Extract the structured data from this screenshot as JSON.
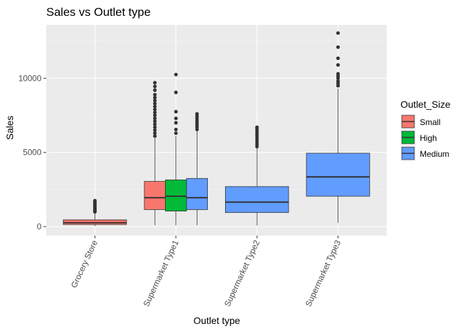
{
  "chart_data": {
    "type": "boxplot",
    "title": "Sales vs Outlet type",
    "xlabel": "Outlet type",
    "ylabel": "Sales",
    "ylim": [
      -600,
      13600
    ],
    "yticks": [
      0,
      5000,
      10000
    ],
    "ytick_labels": [
      "0",
      "5000",
      "10000"
    ],
    "categories": [
      "Grocery Store",
      "Supermarket Type1",
      "Supermarket Type2",
      "Supermarket Type3"
    ],
    "legend": {
      "title": "Outlet_Size",
      "position": "right",
      "entries": [
        {
          "name": "Small",
          "color": "#f8766d"
        },
        {
          "name": "High",
          "color": "#00ba38"
        },
        {
          "name": "Medium",
          "color": "#619cff"
        }
      ]
    },
    "grid": true,
    "boxes": [
      {
        "category": "Grocery Store",
        "group": "Small",
        "color": "#f8766d",
        "min": 35,
        "q1": 140,
        "median": 260,
        "q3": 460,
        "max": 950,
        "outliers": [
          1000,
          1050,
          1100,
          1150,
          1200,
          1250,
          1300,
          1350,
          1450,
          1550,
          1650,
          1750
        ]
      },
      {
        "category": "Supermarket Type1",
        "group": "Small",
        "color": "#f8766d",
        "min": 100,
        "q1": 1150,
        "median": 1950,
        "q3": 3050,
        "max": 5950,
        "outliers": [
          6100,
          6300,
          6500,
          6700,
          6900,
          7100,
          7300,
          7500,
          7700,
          7900,
          8100,
          8300,
          8500,
          8700,
          8900,
          9200,
          9450,
          9700
        ]
      },
      {
        "category": "Supermarket Type1",
        "group": "High",
        "color": "#00ba38",
        "min": 80,
        "q1": 1050,
        "median": 2050,
        "q3": 3150,
        "max": 6100,
        "outliers": [
          6300,
          6550,
          7000,
          7300,
          7750,
          9050,
          10250
        ]
      },
      {
        "category": "Supermarket Type1",
        "group": "Medium",
        "color": "#619cff",
        "min": 100,
        "q1": 1150,
        "median": 1950,
        "q3": 3250,
        "max": 6450,
        "outliers": [
          6550,
          6700,
          6850,
          7000,
          7150,
          7300,
          7450,
          7600
        ]
      },
      {
        "category": "Supermarket Type2",
        "group": "Medium",
        "color": "#619cff",
        "min": 70,
        "q1": 950,
        "median": 1650,
        "q3": 2700,
        "max": 5300,
        "outliers": [
          5400,
          5550,
          5700,
          5850,
          6000,
          6150,
          6300,
          6450,
          6600,
          6700
        ]
      },
      {
        "category": "Supermarket Type3",
        "group": "Medium",
        "color": "#619cff",
        "min": 250,
        "q1": 2050,
        "median": 3350,
        "q3": 4950,
        "max": 9300,
        "outliers": [
          9500,
          9650,
          9800,
          10000,
          10150,
          10300,
          10900,
          11350,
          12100,
          13050
        ]
      }
    ]
  }
}
